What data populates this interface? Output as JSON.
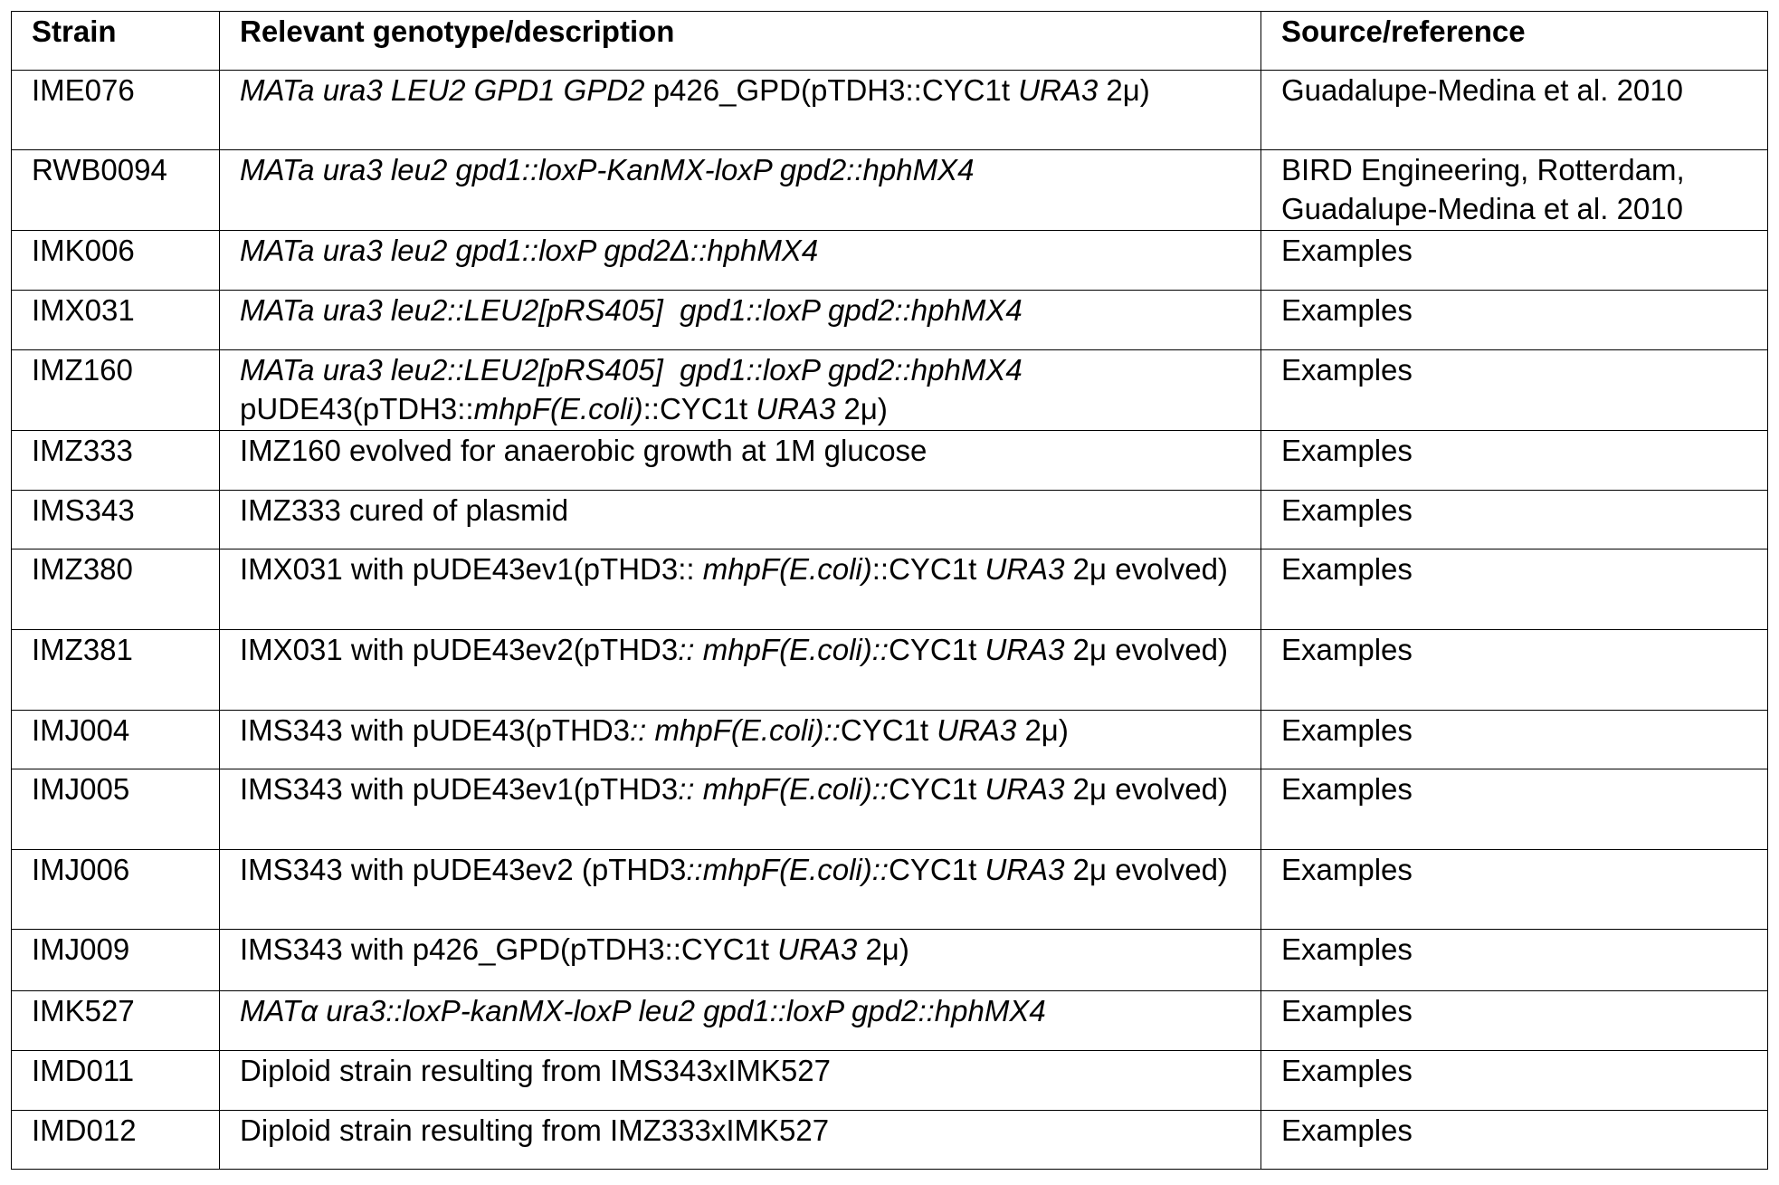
{
  "table": {
    "header": [
      "Strain",
      "Relevant genotype/description",
      "Source/reference"
    ],
    "rows": [
      {
        "strain": "IME076",
        "description": [
          {
            "text": "MATa ura3 LEU2 GPD1 GPD2",
            "italic": true
          },
          {
            "text": " p426_GPD(pTDH3::CYC1t ",
            "italic": false
          },
          {
            "text": "URA3",
            "italic": true
          },
          {
            "text": " 2μ)",
            "italic": false
          }
        ],
        "source": "Guadalupe-Medina et al. 2010"
      },
      {
        "strain": "RWB0094",
        "description": [
          {
            "text": "MATa ura3 leu2 gpd1::loxP-KanMX-loxP gpd2::hphMX4",
            "italic": true
          }
        ],
        "source": "BIRD Engineering, Rotterdam, Guadalupe-Medina et al. 2010"
      },
      {
        "strain": "IMK006",
        "description": [
          {
            "text": "MATa ura3 leu2 gpd1::loxP gpd2Δ::hphMX4",
            "italic": true
          }
        ],
        "source": "Examples"
      },
      {
        "strain": "IMX031",
        "description": [
          {
            "text": "MATa ura3 leu2::LEU2[pRS405]  gpd1::loxP gpd2::hphMX4",
            "italic": true
          }
        ],
        "source": "Examples"
      },
      {
        "strain": "IMZ160",
        "description": [
          {
            "text": "MATa ura3 leu2::LEU2[pRS405]  gpd1::loxP gpd2::hphMX4",
            "italic": true
          },
          {
            "text": " pUDE43(pTDH3::",
            "italic": false
          },
          {
            "text": "mhpF(E.coli)",
            "italic": true
          },
          {
            "text": "::CYC1t ",
            "italic": false
          },
          {
            "text": "URA3",
            "italic": true
          },
          {
            "text": " 2μ)",
            "italic": false
          }
        ],
        "source": "Examples"
      },
      {
        "strain": "IMZ333",
        "description": [
          {
            "text": "IMZ160 evolved for anaerobic growth at 1M glucose",
            "italic": false
          }
        ],
        "source": "Examples"
      },
      {
        "strain": "IMS343",
        "description": [
          {
            "text": "IMZ333 cured of plasmid",
            "italic": false
          }
        ],
        "source": "Examples"
      },
      {
        "strain": "IMZ380",
        "description": [
          {
            "text": "IMX031 with pUDE43ev1(pTHD3:: ",
            "italic": false
          },
          {
            "text": "mhpF(E.coli)",
            "italic": true
          },
          {
            "text": "::CYC1t ",
            "italic": false
          },
          {
            "text": "URA3",
            "italic": true
          },
          {
            "text": " 2μ evolved)",
            "italic": false
          }
        ],
        "source": "Examples"
      },
      {
        "strain": "IMZ381",
        "description": [
          {
            "text": "IMX031 with pUDE43ev2(pTHD3",
            "italic": false
          },
          {
            "text": ":: mhpF(E.coli)::",
            "italic": true
          },
          {
            "text": "CYC1t ",
            "italic": false
          },
          {
            "text": "URA3",
            "italic": true
          },
          {
            "text": " 2μ evolved)",
            "italic": false
          }
        ],
        "source": "Examples"
      },
      {
        "strain": "IMJ004",
        "description": [
          {
            "text": "IMS343 with pUDE43(pTHD3",
            "italic": false
          },
          {
            "text": ":: mhpF(E.coli)::",
            "italic": true
          },
          {
            "text": "CYC1t ",
            "italic": false
          },
          {
            "text": "URA3",
            "italic": true
          },
          {
            "text": " 2μ)",
            "italic": false
          }
        ],
        "source": "Examples"
      },
      {
        "strain": "IMJ005",
        "description": [
          {
            "text": "IMS343 with pUDE43ev1(pTHD3",
            "italic": false
          },
          {
            "text": ":: mhpF(E.coli)::",
            "italic": true
          },
          {
            "text": "CYC1t ",
            "italic": false
          },
          {
            "text": "URA3",
            "italic": true
          },
          {
            "text": " 2μ evolved)",
            "italic": false
          }
        ],
        "source": "Examples"
      },
      {
        "strain": "IMJ006",
        "description": [
          {
            "text": "IMS343 with pUDE43ev2 (pTHD3",
            "italic": false
          },
          {
            "text": "::mhpF(E.coli)::",
            "italic": true
          },
          {
            "text": "CYC1t ",
            "italic": false
          },
          {
            "text": "URA3",
            "italic": true
          },
          {
            "text": " 2μ evolved)",
            "italic": false
          }
        ],
        "source": "Examples"
      },
      {
        "strain": "IMJ009",
        "description": [
          {
            "text": "IMS343 with p426_GPD(pTDH3::CYC1t ",
            "italic": false
          },
          {
            "text": "URA3",
            "italic": true
          },
          {
            "text": " 2μ)",
            "italic": false
          }
        ],
        "source": "Examples"
      },
      {
        "strain": "IMK527",
        "description": [
          {
            "text": "MATα ura3::loxP-kanMX-loxP leu2 gpd1::loxP gpd2::hphMX4",
            "italic": true
          }
        ],
        "source": "Examples"
      },
      {
        "strain": "IMD011",
        "description": [
          {
            "text": "Diploid strain resulting from IMS343xIMK527",
            "italic": false
          }
        ],
        "source": "Examples"
      },
      {
        "strain": "IMD012",
        "description": [
          {
            "text": "Diploid strain resulting from IMZ333xIMK527",
            "italic": false
          }
        ],
        "source": "Examples"
      }
    ]
  }
}
